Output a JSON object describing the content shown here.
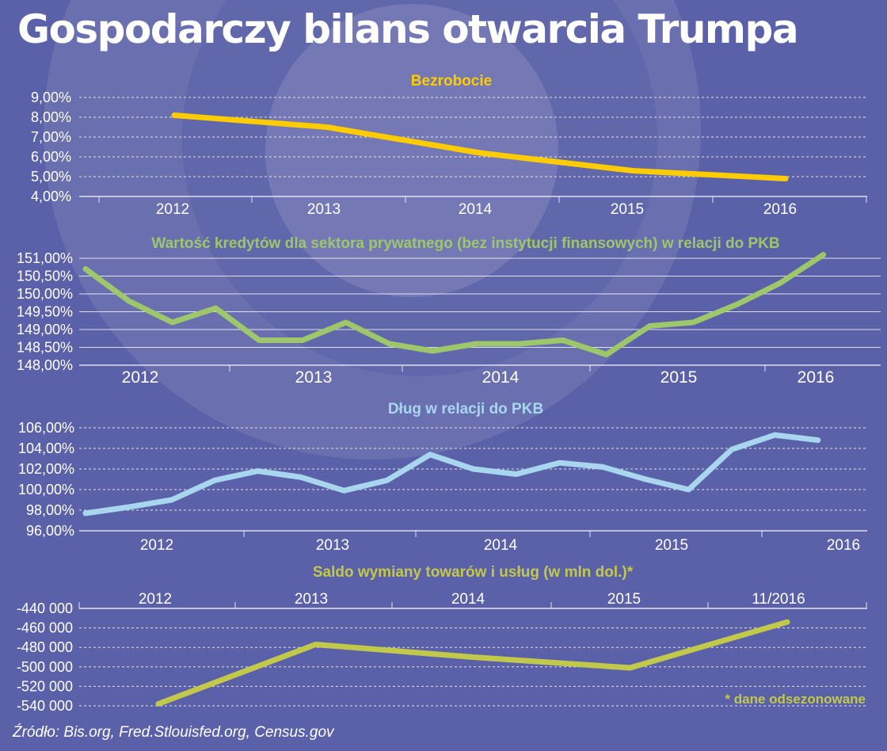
{
  "title": "Gospodarczy bilans otwarcia Trumpa",
  "source": "Źródło: Bis.org, Fred.Stlouisfed.org, Census.gov",
  "colors": {
    "background": "#5b61a8",
    "unemployment": "#ffcc00",
    "credit": "#9ec66a",
    "debt": "#a7d6ee",
    "trade": "#c2c94a"
  },
  "chart_data": [
    {
      "type": "line",
      "title": "Bezrobocie",
      "yticks": [
        "9,00%",
        "8,00%",
        "7,00%",
        "6,00%",
        "5,00%",
        "4,00%"
      ],
      "ylim": [
        4,
        9
      ],
      "xticks": [
        "2012",
        "2013",
        "2014",
        "2015",
        "2016"
      ],
      "grid": true,
      "series": [
        {
          "x": [
            2012,
            2013,
            2014,
            2015,
            2016
          ],
          "values": [
            8.1,
            7.5,
            6.2,
            5.3,
            4.9
          ]
        }
      ]
    },
    {
      "type": "line",
      "title": "Wartość kredytów dla sektora prywatnego (bez instytucji finansowych) w relacji do PKB",
      "yticks": [
        "151,00%",
        "150,50%",
        "150,00%",
        "149,50%",
        "149,00%",
        "148,50%",
        "148,00%"
      ],
      "ylim": [
        148,
        151
      ],
      "xticks": [
        "2012",
        "2013",
        "2014",
        "2015",
        "2016"
      ],
      "grid": true,
      "series": [
        {
          "x": [
            "Q1 2012",
            "Q2 2012",
            "Q3 2012",
            "Q4 2012",
            "Q1 2013",
            "Q2 2013",
            "Q3 2013",
            "Q4 2013",
            "Q1 2014",
            "Q2 2014",
            "Q3 2014",
            "Q4 2014",
            "Q1 2015",
            "Q2 2015",
            "Q3 2015",
            "Q4 2015",
            "Q1 2016",
            "Q2 2016"
          ],
          "values": [
            150.7,
            149.8,
            149.2,
            149.6,
            148.7,
            148.7,
            149.2,
            148.6,
            148.4,
            148.6,
            148.6,
            148.7,
            148.3,
            149.1,
            149.2,
            149.7,
            150.3,
            151.1
          ]
        }
      ]
    },
    {
      "type": "line",
      "title": "Dług w relacji do PKB",
      "yticks": [
        "106,00%",
        "104,00%",
        "102,00%",
        "100,00%",
        "98,00%",
        "96,00%"
      ],
      "ylim": [
        96,
        106
      ],
      "xticks": [
        "2012",
        "2013",
        "2014",
        "2015",
        "2016"
      ],
      "grid": true,
      "series": [
        {
          "x": [
            "Q1 2012",
            "Q2 2012",
            "Q3 2012",
            "Q4 2012",
            "Q1 2013",
            "Q2 2013",
            "Q3 2013",
            "Q4 2013",
            "Q1 2014",
            "Q2 2014",
            "Q3 2014",
            "Q4 2014",
            "Q1 2015",
            "Q2 2015",
            "Q3 2015",
            "Q4 2015",
            "Q1 2016",
            "Q2 2016"
          ],
          "values": [
            97.7,
            98.3,
            99.0,
            100.9,
            101.8,
            101.2,
            99.9,
            100.9,
            103.4,
            102.0,
            101.5,
            102.6,
            102.2,
            101.0,
            100.0,
            103.9,
            105.3,
            104.8
          ]
        }
      ]
    },
    {
      "type": "line",
      "title": "Saldo wymiany towarów i usług (w mln dol.)*",
      "note": "* dane odsezonowane",
      "yticks": [
        "-440 000",
        "-460 000",
        "-480 000",
        "-500 000",
        "-520 000",
        "-540 000"
      ],
      "ylim": [
        -540000,
        -440000
      ],
      "xticks": [
        "2012",
        "2013",
        "2014",
        "2015",
        "11/2016"
      ],
      "grid": true,
      "series": [
        {
          "x": [
            "2012",
            "2013",
            "2014",
            "2015",
            "11/2016"
          ],
          "values": [
            -538000,
            -477000,
            -490000,
            -501000,
            -454000
          ]
        }
      ]
    }
  ]
}
